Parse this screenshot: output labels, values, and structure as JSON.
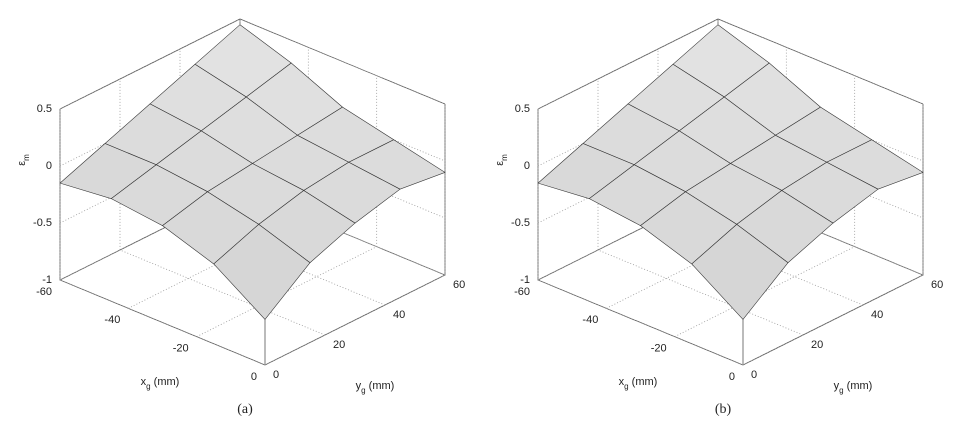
{
  "chart_data": [
    {
      "type": "surface",
      "caption": "(a)",
      "xlabel": {
        "base": "x",
        "sub": "g",
        "unit": " (mm)"
      },
      "ylabel": {
        "base": "y",
        "sub": "g",
        "unit": " (mm)"
      },
      "zlabel": {
        "base": "ε",
        "sub": "m"
      },
      "x": [
        -60,
        -45,
        -30,
        -15,
        0
      ],
      "y": [
        0,
        15,
        30,
        45,
        60
      ],
      "z": [
        [
          -0.15,
          0.0,
          0.15,
          0.3,
          0.45
        ],
        [
          -0.1,
          0.0,
          0.1,
          0.2,
          0.3
        ],
        [
          -0.15,
          -0.05,
          0.0,
          0.05,
          0.1
        ],
        [
          -0.3,
          -0.15,
          -0.05,
          0.0,
          0.0
        ],
        [
          -0.6,
          -0.3,
          -0.15,
          -0.05,
          -0.1
        ]
      ],
      "xlim": [
        -60,
        0
      ],
      "ylim": [
        0,
        60
      ],
      "zlim": [
        -1,
        0.5
      ],
      "xticks": [
        -60,
        -40,
        -20,
        0
      ],
      "yticks": [
        0,
        20,
        40,
        60
      ],
      "zticks": [
        -1,
        -0.5,
        0,
        0.5
      ],
      "grid": true
    },
    {
      "type": "surface",
      "caption": "(b)",
      "xlabel": {
        "base": "x",
        "sub": "g",
        "unit": " (mm)"
      },
      "ylabel": {
        "base": "y",
        "sub": "g",
        "unit": " (mm)"
      },
      "zlabel": {
        "base": "ε",
        "sub": "m"
      },
      "x": [
        -60,
        -45,
        -30,
        -15,
        0
      ],
      "y": [
        0,
        15,
        30,
        45,
        60
      ],
      "z": [
        [
          -0.15,
          0.0,
          0.15,
          0.3,
          0.45
        ],
        [
          -0.1,
          0.0,
          0.1,
          0.2,
          0.3
        ],
        [
          -0.15,
          -0.05,
          0.0,
          0.05,
          0.1
        ],
        [
          -0.3,
          -0.15,
          -0.05,
          0.0,
          0.0
        ],
        [
          -0.6,
          -0.3,
          -0.15,
          -0.05,
          -0.1
        ]
      ],
      "xlim": [
        -60,
        0
      ],
      "ylim": [
        0,
        60
      ],
      "zlim": [
        -1,
        0.5
      ],
      "xticks": [
        -60,
        -40,
        -20,
        0
      ],
      "yticks": [
        0,
        20,
        40,
        60
      ],
      "zticks": [
        -1,
        -0.5,
        0,
        0.5
      ],
      "grid": true
    }
  ]
}
